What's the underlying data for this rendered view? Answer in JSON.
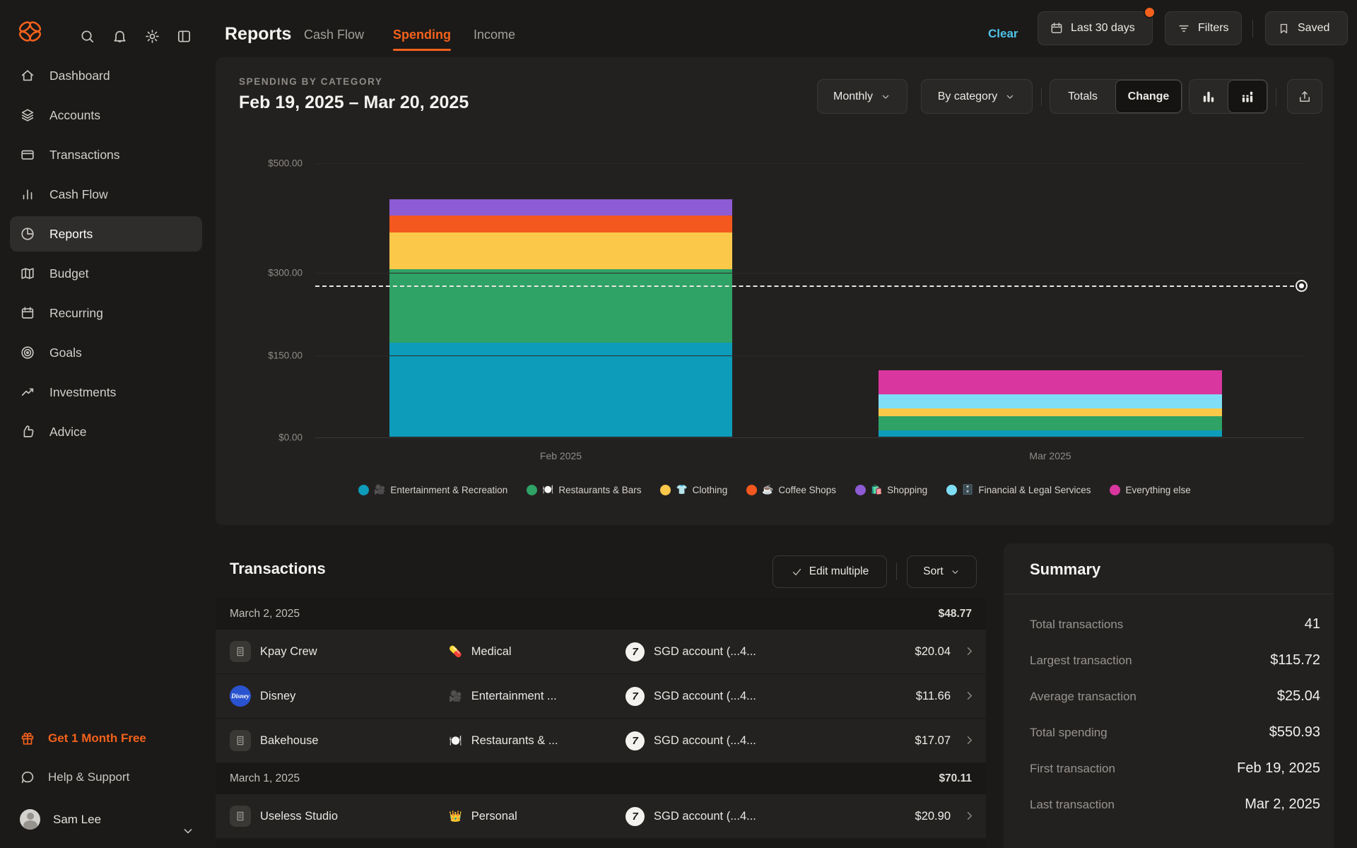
{
  "app": {
    "accent": "#f4611c"
  },
  "topbar": {
    "page_title": "Reports",
    "tabs": [
      {
        "label": "Cash Flow"
      },
      {
        "label": "Spending"
      },
      {
        "label": "Income"
      }
    ],
    "clear_label": "Clear",
    "clear_color": "#4fc3e8",
    "date_range_button": "Last 30 days",
    "filters_button": "Filters",
    "saved_button": "Saved"
  },
  "sidebar": {
    "items": [
      {
        "label": "Dashboard"
      },
      {
        "label": "Accounts"
      },
      {
        "label": "Transactions"
      },
      {
        "label": "Cash Flow"
      },
      {
        "label": "Reports",
        "selected": true
      },
      {
        "label": "Budget"
      },
      {
        "label": "Recurring"
      },
      {
        "label": "Goals"
      },
      {
        "label": "Investments"
      },
      {
        "label": "Advice"
      }
    ],
    "promo_label": "Get 1 Month Free",
    "help_label": "Help & Support",
    "user_name": "Sam Lee"
  },
  "chart_card": {
    "eyebrow": "SPENDING BY CATEGORY",
    "title": "Feb 19, 2025 – Mar 20, 2025",
    "granularity_dropdown": "Monthly",
    "group_dropdown": "By category",
    "segmented": {
      "totals_label": "Totals",
      "change_label": "Change",
      "selected": "Change"
    }
  },
  "chart_data": {
    "type": "bar",
    "stacked": true,
    "categories": [
      "Feb 2025",
      "Mar 2025"
    ],
    "series": [
      {
        "name": "Entertainment & Recreation",
        "emoji": "🎥",
        "color": "#0d9cba",
        "values": [
          172,
          12
        ]
      },
      {
        "name": "Restaurants & Bars",
        "emoji": "🍽️",
        "color": "#2fa266",
        "values": [
          133,
          26
        ]
      },
      {
        "name": "Clothing",
        "emoji": "👕",
        "color": "#fbc84a",
        "values": [
          68,
          13
        ]
      },
      {
        "name": "Coffee Shops",
        "emoji": "☕",
        "color": "#f4581e",
        "values": [
          30,
          0
        ]
      },
      {
        "name": "Shopping",
        "emoji": "🛍️",
        "color": "#8d5bd4",
        "values": [
          30,
          0
        ]
      },
      {
        "name": "Financial & Legal Services",
        "emoji": "🗄️",
        "color": "#7fdef5",
        "values": [
          0,
          26
        ]
      },
      {
        "name": "Everything else",
        "emoji": "",
        "color": "#d9379f",
        "values": [
          0,
          44
        ]
      }
    ],
    "y_ticks": [
      {
        "label": "$500.00",
        "value": 500
      },
      {
        "label": "$300.00",
        "value": 300
      },
      {
        "label": "$150.00",
        "value": 150
      },
      {
        "label": "$0.00",
        "value": 0
      }
    ],
    "ylim": [
      0,
      500
    ],
    "average_line_value": 275.47,
    "legend_position": "bottom",
    "grid": true
  },
  "transactions": {
    "title": "Transactions",
    "edit_multiple_label": "Edit multiple",
    "sort_label": "Sort",
    "groups": [
      {
        "date": "March 2, 2025",
        "total": "$48.77",
        "rows": [
          {
            "merchant": "Kpay Crew",
            "category_emoji": "💊",
            "category": "Medical",
            "account_logo": "7",
            "account": "SGD account (...4...",
            "amount": "$20.04"
          },
          {
            "merchant": "Disney",
            "category_emoji": "🎥",
            "category": "Entertainment ...",
            "account_logo": "7",
            "account": "SGD account (...4...",
            "amount": "$11.66"
          },
          {
            "merchant": "Bakehouse",
            "category_emoji": "🍽️",
            "category": "Restaurants & ...",
            "account_logo": "7",
            "account": "SGD account (...4...",
            "amount": "$17.07"
          }
        ]
      },
      {
        "date": "March 1, 2025",
        "total": "$70.11",
        "rows": [
          {
            "merchant": "Useless Studio",
            "category_emoji": "👑",
            "category": "Personal",
            "account_logo": "7",
            "account": "SGD account (...4...",
            "amount": "$20.90"
          }
        ]
      }
    ]
  },
  "summary": {
    "title": "Summary",
    "rows": [
      {
        "label": "Total transactions",
        "value": "41"
      },
      {
        "label": "Largest transaction",
        "value": "$115.72"
      },
      {
        "label": "Average transaction",
        "value": "$25.04"
      },
      {
        "label": "Total spending",
        "value": "$550.93"
      },
      {
        "label": "First transaction",
        "value": "Feb 19, 2025"
      },
      {
        "label": "Last transaction",
        "value": "Mar 2, 2025"
      }
    ]
  }
}
